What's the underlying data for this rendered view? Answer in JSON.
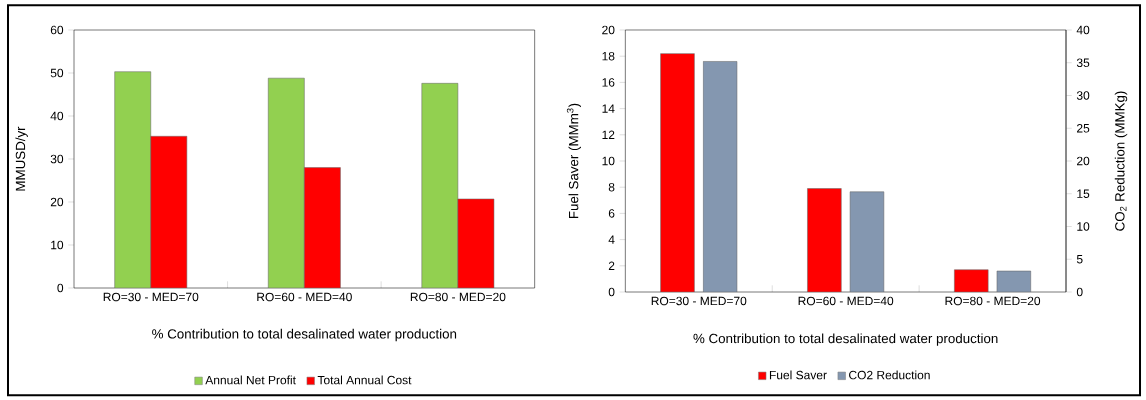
{
  "chart_data": [
    {
      "type": "bar",
      "categories": [
        "RO=30 - MED=70",
        "RO=60 - MED=40",
        "RO=80 - MED=20"
      ],
      "xlabel": "% Contribution to total desalinated water production",
      "ylabel": "MMUSD/yr",
      "ylim": [
        0,
        60
      ],
      "yticks": [
        0,
        10,
        20,
        30,
        40,
        50,
        60
      ],
      "legend": "bottom",
      "series": [
        {
          "name": "Annual Net Profit",
          "color": "#92d050",
          "values": [
            50.3,
            48.8,
            47.6
          ]
        },
        {
          "name": "Total Annual Cost",
          "color": "#ff0000",
          "values": [
            35.3,
            28.0,
            20.7
          ]
        }
      ]
    },
    {
      "type": "bar",
      "categories": [
        "RO=30 - MED=70",
        "RO=60 - MED=40",
        "RO=80 - MED=20"
      ],
      "xlabel": "% Contribution to total desalinated water production",
      "ylabel": "Fuel Saver (MMm$^{3}$)",
      "y2label": "CO$_{2}$ Reduction (MMKg)",
      "ylim": [
        0,
        20
      ],
      "yticks": [
        0,
        2,
        4,
        6,
        8,
        10,
        12,
        14,
        16,
        18,
        20
      ],
      "y2lim": [
        0,
        40
      ],
      "y2ticks": [
        0,
        5,
        10,
        15,
        20,
        25,
        30,
        35,
        40
      ],
      "legend": "bottom",
      "series": [
        {
          "name": "Fuel Saver",
          "color": "#ff0000",
          "values": [
            18.2,
            7.9,
            1.7
          ]
        },
        {
          "name": "CO2 Reduction",
          "color": "#8497b0",
          "axis": "y2",
          "values": [
            35.2,
            15.3,
            3.2
          ]
        }
      ]
    }
  ]
}
